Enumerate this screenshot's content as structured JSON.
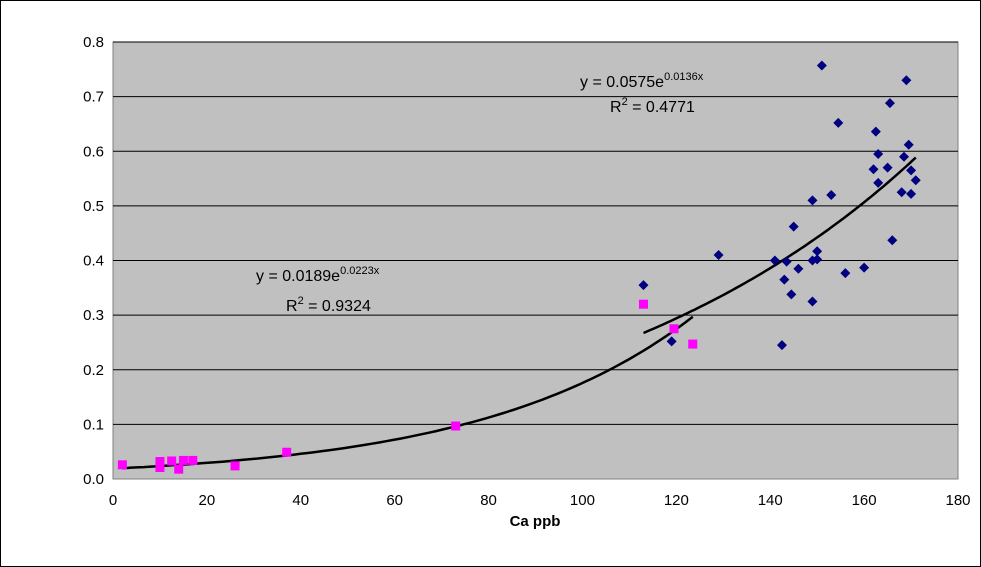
{
  "chart_data": {
    "type": "scatter",
    "title": "",
    "xlabel": "Ca ppb",
    "ylabel": "",
    "xlim": [
      0,
      180
    ],
    "ylim": [
      0,
      0.8
    ],
    "x_ticks": [
      "0",
      "20",
      "40",
      "60",
      "80",
      "100",
      "120",
      "140",
      "160",
      "180"
    ],
    "y_ticks": [
      "0.0",
      "0.1",
      "0.2",
      "0.3",
      "0.4",
      "0.5",
      "0.6",
      "0.7",
      "0.8"
    ],
    "grid": "horizontal",
    "legend": "none",
    "plot_background": "#c0c0c0",
    "series": [
      {
        "marker": "diamond",
        "color": "#000080",
        "points": [
          [
            113,
            0.355
          ],
          [
            119,
            0.252
          ],
          [
            129,
            0.41
          ],
          [
            141,
            0.4
          ],
          [
            142.5,
            0.245
          ],
          [
            143,
            0.365
          ],
          [
            143.5,
            0.398
          ],
          [
            144.5,
            0.338
          ],
          [
            145,
            0.462
          ],
          [
            146,
            0.385
          ],
          [
            149,
            0.4
          ],
          [
            149,
            0.51
          ],
          [
            149,
            0.325
          ],
          [
            150,
            0.402
          ],
          [
            150,
            0.417
          ],
          [
            151,
            0.757
          ],
          [
            153,
            0.52
          ],
          [
            154.5,
            0.652
          ],
          [
            156,
            0.377
          ],
          [
            160,
            0.387
          ],
          [
            162,
            0.567
          ],
          [
            162.5,
            0.636
          ],
          [
            163,
            0.595
          ],
          [
            163,
            0.542
          ],
          [
            165,
            0.57
          ],
          [
            165.5,
            0.688
          ],
          [
            166,
            0.437
          ],
          [
            168,
            0.525
          ],
          [
            168.5,
            0.59
          ],
          [
            169,
            0.73
          ],
          [
            169.5,
            0.612
          ],
          [
            170,
            0.522
          ],
          [
            170,
            0.565
          ],
          [
            171,
            0.547
          ]
        ]
      },
      {
        "marker": "square",
        "color": "#ff00ff",
        "points": [
          [
            2,
            0.026
          ],
          [
            10,
            0.032
          ],
          [
            10,
            0.021
          ],
          [
            12.5,
            0.033
          ],
          [
            14,
            0.018
          ],
          [
            15,
            0.034
          ],
          [
            17,
            0.034
          ],
          [
            26,
            0.024
          ],
          [
            37,
            0.049
          ],
          [
            73,
            0.097
          ],
          [
            113,
            0.32
          ],
          [
            119.5,
            0.275
          ],
          [
            123.5,
            0.247
          ]
        ]
      }
    ],
    "trendlines": [
      {
        "type": "exponential",
        "a": 0.0575,
        "b": 0.0136,
        "x_range": [
          113,
          171
        ]
      },
      {
        "type": "exponential",
        "a": 0.0189,
        "b": 0.0223,
        "x_range": [
          2,
          123.5
        ]
      }
    ],
    "annotations": [
      {
        "base": "y = 0.0575e",
        "exp": "0.0136x",
        "r2_label": "R",
        "r2_sup": "2",
        "r2_value": " = 0.4771"
      },
      {
        "base": "y = 0.0189e",
        "exp": "0.0223x",
        "r2_label": "R",
        "r2_sup": "2",
        "r2_value": " = 0.9324"
      }
    ]
  }
}
